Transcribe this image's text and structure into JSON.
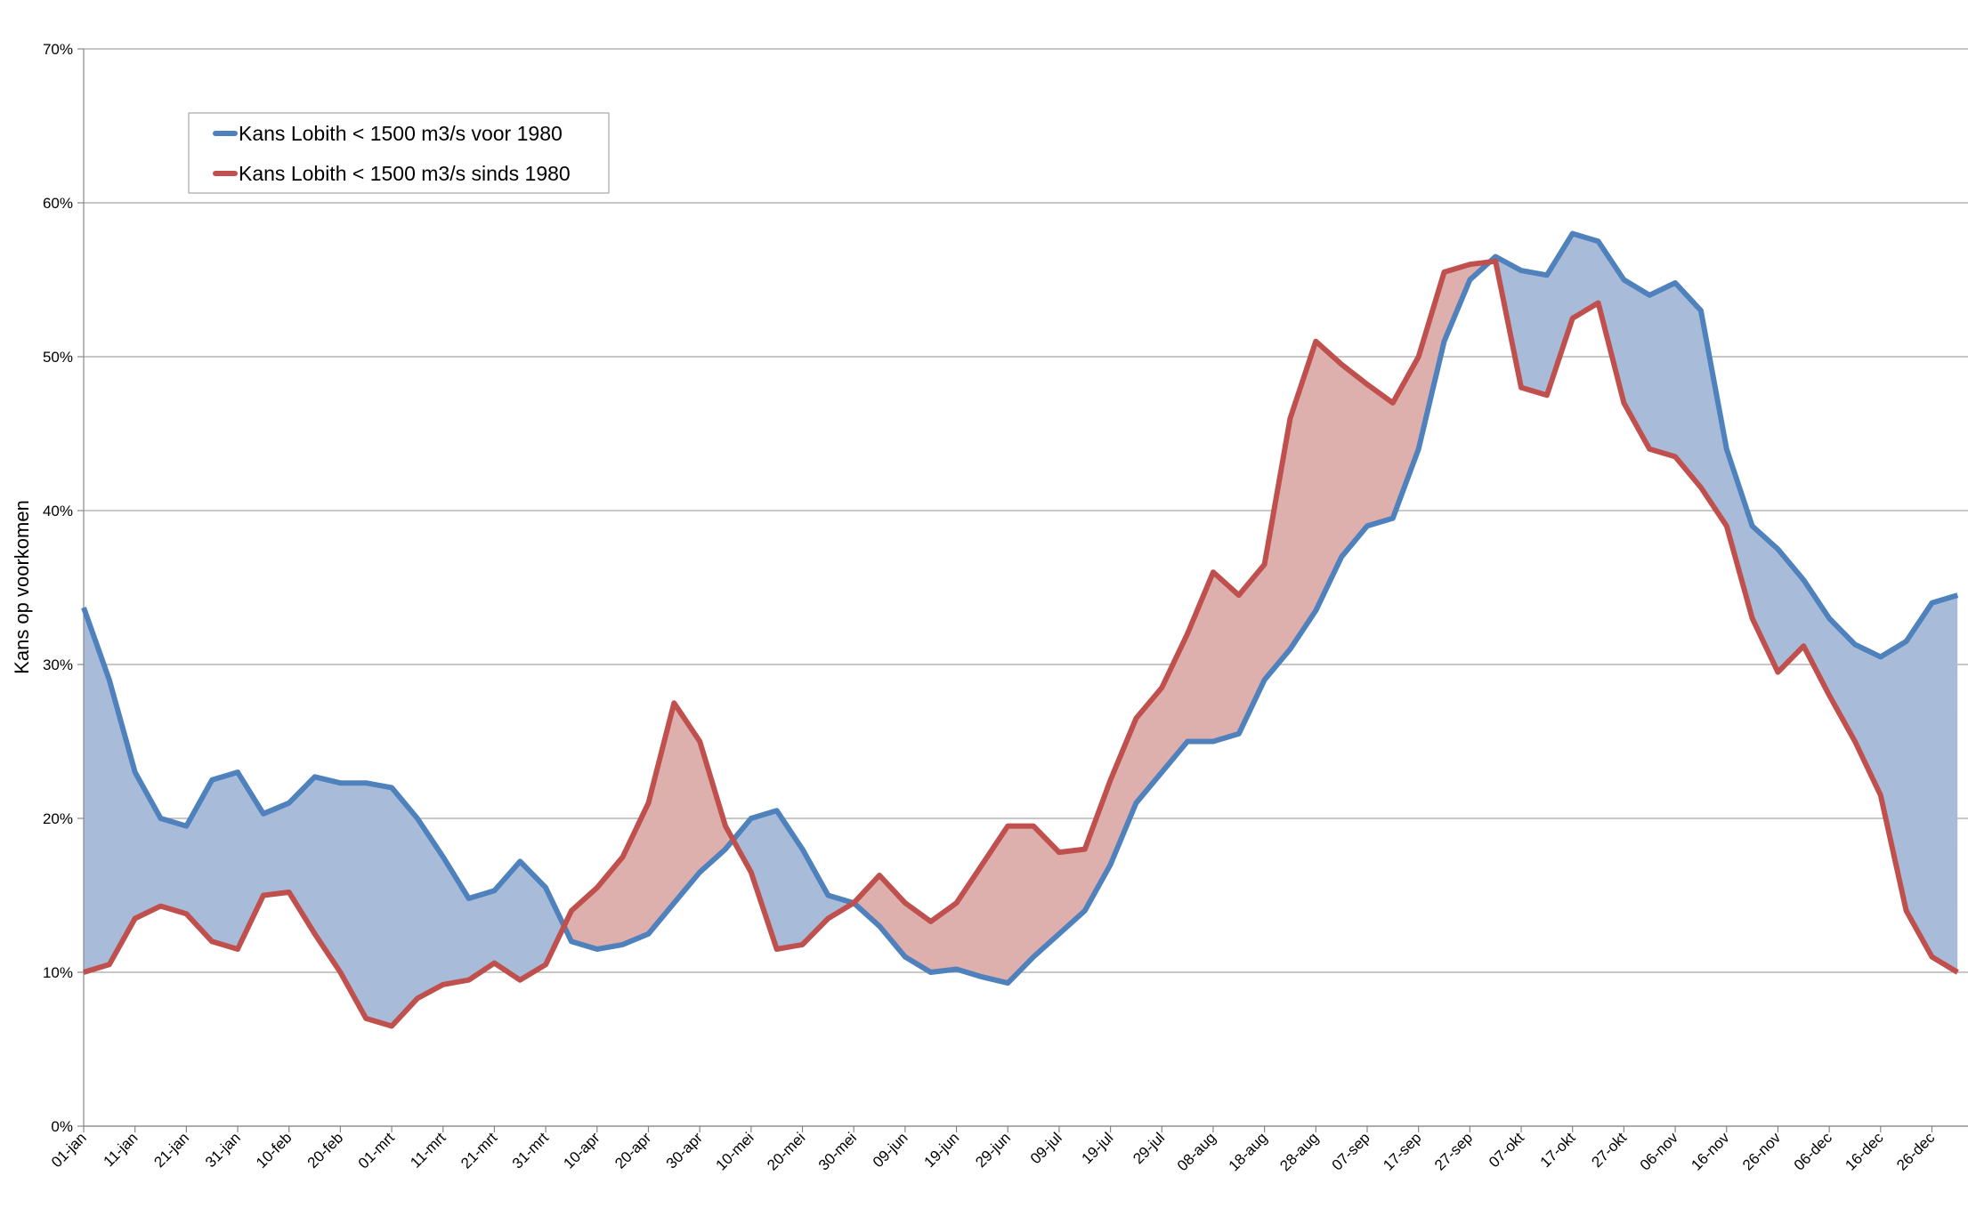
{
  "chart_data": {
    "type": "line",
    "ylabel": "Kans op voorkomen",
    "categories": [
      "01-jan",
      null,
      "11-jan",
      null,
      "21-jan",
      null,
      "31-jan",
      null,
      "10-feb",
      null,
      "20-feb",
      null,
      "01-mrt",
      null,
      "11-mrt",
      null,
      "21-mrt",
      null,
      "31-mrt",
      null,
      "10-apr",
      null,
      "20-apr",
      null,
      "30-apr",
      null,
      "10-mei",
      null,
      "20-mei",
      null,
      "30-mei",
      null,
      "09-jun",
      null,
      "19-jun",
      null,
      "29-jun",
      null,
      "09-jul",
      null,
      "19-jul",
      null,
      "29-jul",
      null,
      "08-aug",
      null,
      "18-aug",
      null,
      "28-aug",
      null,
      "07-sep",
      null,
      "17-sep",
      null,
      "27-sep",
      null,
      "07-okt",
      null,
      "17-okt",
      null,
      "27-okt",
      null,
      "06-nov",
      null,
      "16-nov",
      null,
      "26-nov",
      null,
      "06-dec",
      null,
      "16-dec",
      null,
      "26-dec",
      null
    ],
    "series": [
      {
        "name": "Kans Lobith < 1500 m3/s voor 1980",
        "color": "#4f81bd",
        "fill": "#a8bcd9",
        "values": [
          33.7,
          29,
          23,
          20,
          19.5,
          22.5,
          23,
          20.3,
          21,
          22.7,
          22.3,
          22.3,
          22,
          20,
          17.5,
          14.8,
          15.3,
          17.2,
          15.5,
          12,
          11.5,
          11.8,
          12.5,
          14.5,
          16.5,
          18,
          20,
          20.5,
          18,
          15,
          14.5,
          13,
          11,
          10,
          10.2,
          9.7,
          9.3,
          11,
          12.5,
          14,
          17,
          21,
          23,
          25,
          25,
          25.5,
          29,
          31,
          33.5,
          37,
          39,
          39.5,
          44,
          51,
          55,
          56.5,
          55.6,
          55.3,
          58,
          57.5,
          55,
          54,
          54.8,
          53,
          44,
          39,
          37.5,
          35.5,
          33,
          31.3,
          30.5,
          31.5,
          34,
          34.5
        ]
      },
      {
        "name": "Kans Lobith < 1500 m3/s sinds 1980",
        "color": "#c0504d",
        "fill": "#ddb0ae",
        "values": [
          10,
          10.5,
          13.5,
          14.3,
          13.8,
          12,
          11.5,
          15,
          15.2,
          12.5,
          10,
          7,
          6.5,
          8.3,
          9.2,
          9.5,
          10.6,
          9.5,
          10.5,
          14,
          15.5,
          17.5,
          21,
          27.5,
          25,
          19.5,
          16.5,
          11.5,
          11.8,
          13.5,
          14.5,
          16.3,
          14.5,
          13.3,
          14.5,
          17,
          19.5,
          19.5,
          17.8,
          18,
          22.5,
          26.5,
          28.5,
          32,
          36,
          34.5,
          36.5,
          46,
          51,
          49.5,
          48.2,
          47,
          50,
          55.5,
          56,
          56.2,
          48,
          47.5,
          52.5,
          53.5,
          47,
          44,
          43.5,
          41.5,
          39,
          33,
          29.5,
          31.2,
          28,
          25,
          21.5,
          14,
          11,
          10
        ]
      }
    ],
    "ylim": [
      0,
      70
    ],
    "yticks": [
      {
        "value": 0,
        "label": "0%"
      },
      {
        "value": 10,
        "label": "10%"
      },
      {
        "value": 20,
        "label": "20%"
      },
      {
        "value": 30,
        "label": "30%"
      },
      {
        "value": 40,
        "label": "40%"
      },
      {
        "value": 50,
        "label": "50%"
      },
      {
        "value": 60,
        "label": "60%"
      },
      {
        "value": 70,
        "label": "70%"
      }
    ],
    "grid": true,
    "legend": "top-left"
  }
}
